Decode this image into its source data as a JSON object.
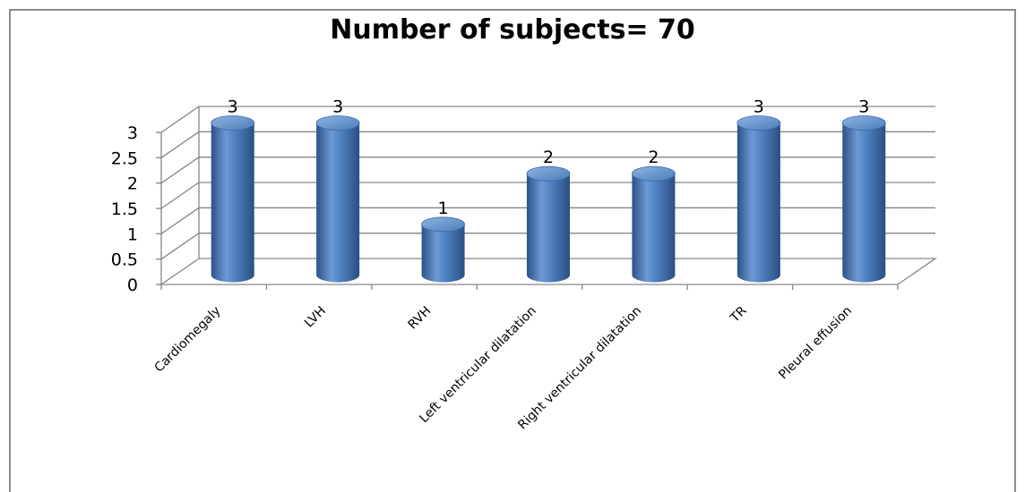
{
  "chart_data": {
    "type": "bar",
    "title": "Number of subjects= 70",
    "categories": [
      "Cardiomegaly",
      "LVH",
      "RVH",
      "Left ventricular dilatation",
      "Right ventricular dilatation",
      "TR",
      "Pleural effusion"
    ],
    "values": [
      3,
      3,
      1,
      2,
      2,
      3,
      3
    ],
    "data_labels": [
      "3",
      "3",
      "1",
      "2",
      "2",
      "3",
      "3"
    ],
    "yticks": [
      "0",
      "0.5",
      "1",
      "1.5",
      "2",
      "2.5",
      "3"
    ],
    "ylim": [
      0,
      3
    ],
    "xlabel": "",
    "ylabel": "",
    "grid": true,
    "style": "3d-cylinder",
    "colors": {
      "bar": "#4a7ebb",
      "bar_dark": "#2c5287",
      "bar_light": "#7fa7da",
      "grid": "#868686"
    }
  }
}
